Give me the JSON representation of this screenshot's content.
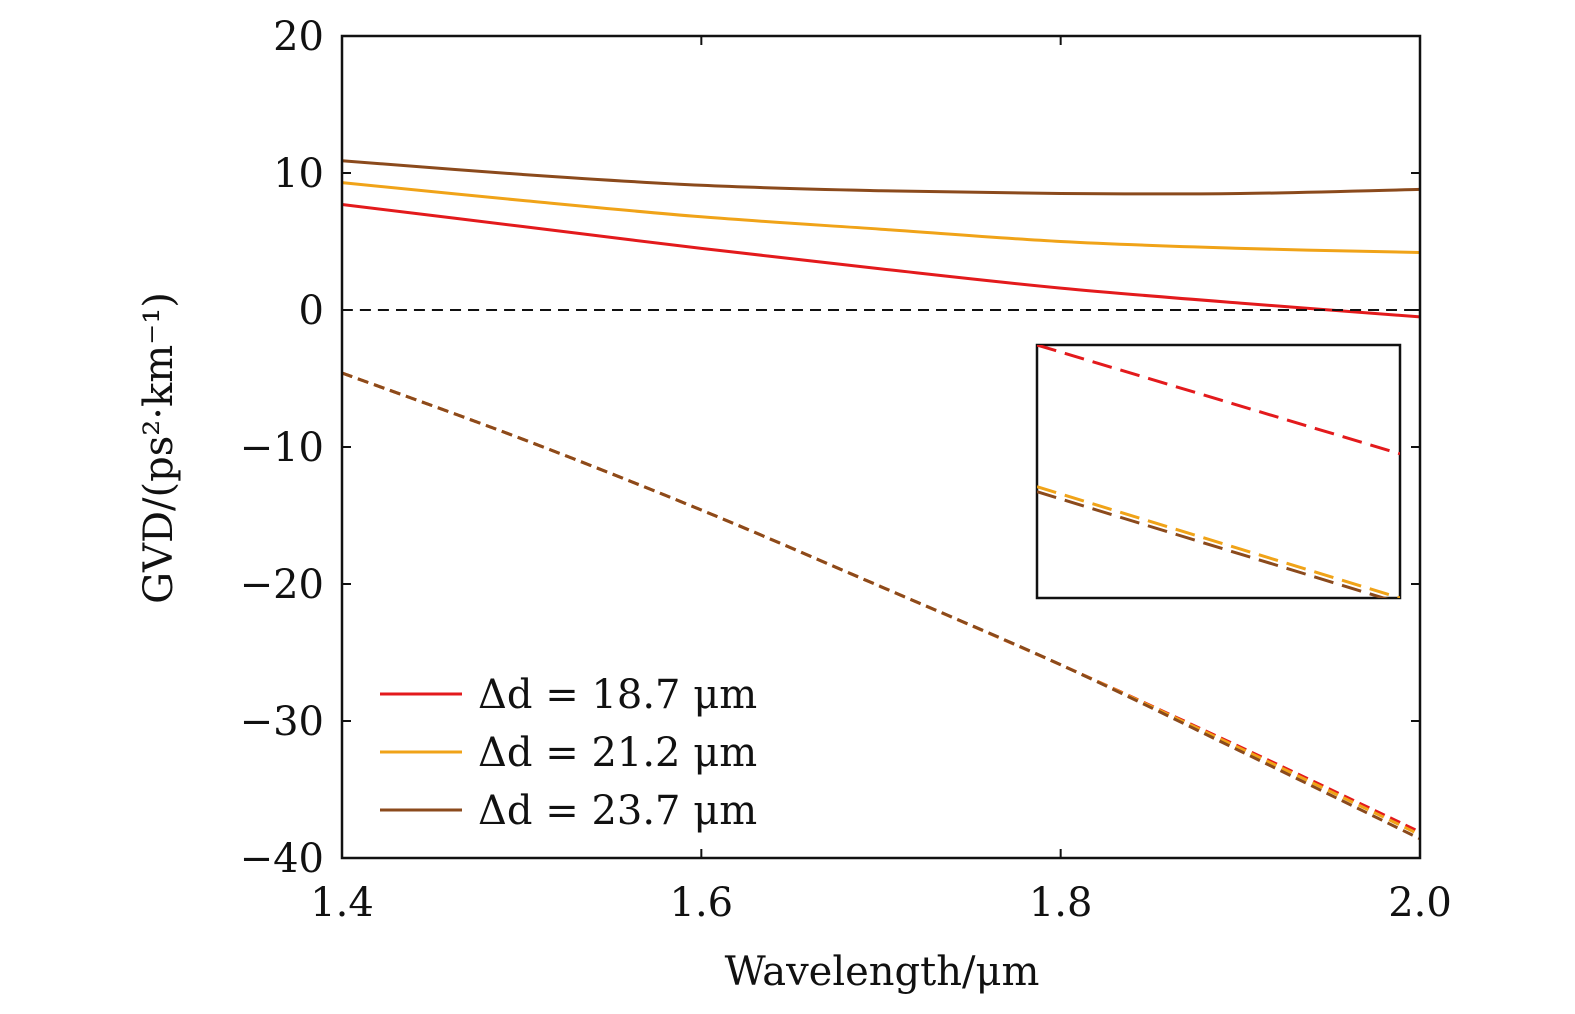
{
  "chart_data": {
    "type": "line",
    "title": "",
    "xlabel": "Wavelength/μm",
    "ylabel": "GVD/(ps²·km⁻¹)",
    "xlim": [
      1.4,
      2.0
    ],
    "ylim": [
      -40,
      20
    ],
    "x_ticks": [
      1.4,
      1.6,
      1.8,
      2.0
    ],
    "x_tick_labels": [
      "1.4",
      "1.6",
      "1.8",
      "2.0"
    ],
    "y_ticks": [
      -40,
      -30,
      -20,
      -10,
      0,
      10,
      20
    ],
    "y_tick_labels": [
      "−40",
      "−30",
      "−20",
      "−10",
      "0",
      "10",
      "20"
    ],
    "grid": false,
    "legend_position": "bottom-left",
    "colors": {
      "d18_7": "#e31a1c",
      "d21_2": "#f0a318",
      "d23_7": "#8b4a1c",
      "zero_line": "#111111"
    },
    "x": [
      1.4,
      1.5,
      1.6,
      1.7,
      1.8,
      1.9,
      2.0
    ],
    "series": [
      {
        "name": "Δd = 18.7 μm",
        "key": "d18_7",
        "style": "solid",
        "values": [
          7.7,
          6.1,
          4.5,
          3.0,
          1.6,
          0.5,
          -0.5
        ]
      },
      {
        "name": "Δd = 21.2 μm",
        "key": "d21_2",
        "style": "solid",
        "values": [
          9.3,
          8.0,
          6.8,
          5.9,
          5.0,
          4.5,
          4.2
        ]
      },
      {
        "name": "Δd = 23.7 μm",
        "key": "d23_7",
        "style": "solid",
        "values": [
          10.9,
          9.9,
          9.1,
          8.7,
          8.5,
          8.5,
          8.8
        ]
      },
      {
        "name": "Δd = 18.7 μm (dashed)",
        "key": "d18_7",
        "style": "dashed",
        "values": [
          -4.6,
          -9.4,
          -14.6,
          -20.2,
          -25.9,
          -31.9,
          -38.1
        ]
      },
      {
        "name": "Δd = 21.2 μm (dashed)",
        "key": "d21_2",
        "style": "dashed",
        "values": [
          -4.6,
          -9.4,
          -14.6,
          -20.2,
          -25.9,
          -32.0,
          -38.3
        ]
      },
      {
        "name": "Δd = 23.7 μm (dashed)",
        "key": "d23_7",
        "style": "dashed",
        "values": [
          -4.6,
          -9.4,
          -14.6,
          -20.2,
          -25.9,
          -32.2,
          -38.6
        ]
      },
      {
        "name": "GVD = 0",
        "key": "zero_line",
        "style": "dashed",
        "values": [
          0,
          0,
          0,
          0,
          0,
          0,
          0
        ]
      }
    ],
    "legend": [
      {
        "label": "Δd = 18.7 μm",
        "key": "d18_7"
      },
      {
        "label": "Δd = 21.2 μm",
        "key": "d21_2"
      },
      {
        "label": "Δd = 23.7 μm",
        "key": "d23_7"
      }
    ],
    "inset": {
      "description": "zoomed view of dashed curves",
      "x": [
        0,
        1
      ],
      "series": [
        {
          "key": "d18_7",
          "values": [
            1.0,
            0.57
          ]
        },
        {
          "key": "d21_2",
          "values": [
            0.44,
            0.0
          ]
        },
        {
          "key": "d23_7",
          "values": [
            0.42,
            -0.02
          ]
        }
      ]
    }
  }
}
